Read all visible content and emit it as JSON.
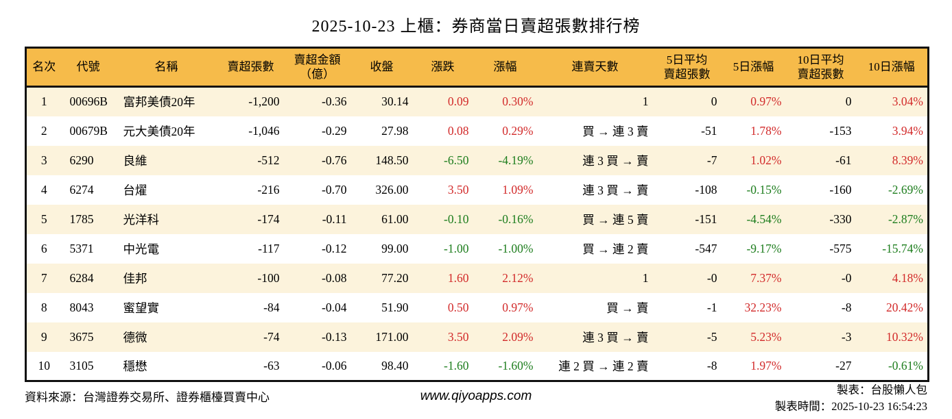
{
  "title": "2025-10-23 上櫃：券商當日賣超張數排行榜",
  "colors": {
    "up_red": "#d22a2a",
    "down_green": "#1d7d1d",
    "header_bg": "#f6bb4a",
    "row_alt_bg": "#fcf3dc",
    "border": "#111111"
  },
  "table": {
    "headers": [
      {
        "id": "rank",
        "label": "名次"
      },
      {
        "id": "code",
        "label": "代號"
      },
      {
        "id": "name",
        "label": "名稱"
      },
      {
        "id": "sell-volume",
        "label": "賣超張數"
      },
      {
        "id": "sell-amount",
        "label": "賣超金額\n（億）"
      },
      {
        "id": "close",
        "label": "收盤"
      },
      {
        "id": "change",
        "label": "漲跌"
      },
      {
        "id": "change-pct",
        "label": "漲幅"
      },
      {
        "id": "sell-streak",
        "label": "連賣天數"
      },
      {
        "id": "avg5-sell",
        "label": "5日平均\n賣超張數"
      },
      {
        "id": "pct5",
        "label": "5日漲幅"
      },
      {
        "id": "avg10-sell",
        "label": "10日平均\n賣超張數"
      },
      {
        "id": "pct10",
        "label": "10日漲幅"
      }
    ],
    "rows": [
      [
        {
          "t": "1"
        },
        {
          "t": "00696B"
        },
        {
          "t": "富邦美債20年"
        },
        {
          "t": "-1,200"
        },
        {
          "t": "-0.36"
        },
        {
          "t": "30.14"
        },
        {
          "t": "0.09",
          "c": "red"
        },
        {
          "t": "0.30%",
          "c": "red"
        },
        {
          "t": "1"
        },
        {
          "t": "0"
        },
        {
          "t": "0.97%",
          "c": "red"
        },
        {
          "t": "0"
        },
        {
          "t": "3.04%",
          "c": "red"
        }
      ],
      [
        {
          "t": "2"
        },
        {
          "t": "00679B"
        },
        {
          "t": "元大美債20年"
        },
        {
          "t": "-1,046"
        },
        {
          "t": "-0.29"
        },
        {
          "t": "27.98"
        },
        {
          "t": "0.08",
          "c": "red"
        },
        {
          "t": "0.29%",
          "c": "red"
        },
        {
          "t": "買 → 連 3 賣"
        },
        {
          "t": "-51"
        },
        {
          "t": "1.78%",
          "c": "red"
        },
        {
          "t": "-153"
        },
        {
          "t": "3.94%",
          "c": "red"
        }
      ],
      [
        {
          "t": "3"
        },
        {
          "t": "6290"
        },
        {
          "t": "良維"
        },
        {
          "t": "-512"
        },
        {
          "t": "-0.76"
        },
        {
          "t": "148.50"
        },
        {
          "t": "-6.50",
          "c": "green"
        },
        {
          "t": "-4.19%",
          "c": "green"
        },
        {
          "t": "連 3 買 → 賣"
        },
        {
          "t": "-7"
        },
        {
          "t": "1.02%",
          "c": "red"
        },
        {
          "t": "-61"
        },
        {
          "t": "8.39%",
          "c": "red"
        }
      ],
      [
        {
          "t": "4"
        },
        {
          "t": "6274"
        },
        {
          "t": "台燿"
        },
        {
          "t": "-216"
        },
        {
          "t": "-0.70"
        },
        {
          "t": "326.00"
        },
        {
          "t": "3.50",
          "c": "red"
        },
        {
          "t": "1.09%",
          "c": "red"
        },
        {
          "t": "連 3 買 → 賣"
        },
        {
          "t": "-108"
        },
        {
          "t": "-0.15%",
          "c": "green"
        },
        {
          "t": "-160"
        },
        {
          "t": "-2.69%",
          "c": "green"
        }
      ],
      [
        {
          "t": "5"
        },
        {
          "t": "1785"
        },
        {
          "t": "光洋科"
        },
        {
          "t": "-174"
        },
        {
          "t": "-0.11"
        },
        {
          "t": "61.00"
        },
        {
          "t": "-0.10",
          "c": "green"
        },
        {
          "t": "-0.16%",
          "c": "green"
        },
        {
          "t": "買 → 連 5 賣"
        },
        {
          "t": "-151"
        },
        {
          "t": "-4.54%",
          "c": "green"
        },
        {
          "t": "-330"
        },
        {
          "t": "-2.87%",
          "c": "green"
        }
      ],
      [
        {
          "t": "6"
        },
        {
          "t": "5371"
        },
        {
          "t": "中光電"
        },
        {
          "t": "-117"
        },
        {
          "t": "-0.12"
        },
        {
          "t": "99.00"
        },
        {
          "t": "-1.00",
          "c": "green"
        },
        {
          "t": "-1.00%",
          "c": "green"
        },
        {
          "t": "買 → 連 2 賣"
        },
        {
          "t": "-547"
        },
        {
          "t": "-9.17%",
          "c": "green"
        },
        {
          "t": "-575"
        },
        {
          "t": "-15.74%",
          "c": "green"
        }
      ],
      [
        {
          "t": "7"
        },
        {
          "t": "6284"
        },
        {
          "t": "佳邦"
        },
        {
          "t": "-100"
        },
        {
          "t": "-0.08"
        },
        {
          "t": "77.20"
        },
        {
          "t": "1.60",
          "c": "red"
        },
        {
          "t": "2.12%",
          "c": "red"
        },
        {
          "t": "1"
        },
        {
          "t": "-0"
        },
        {
          "t": "7.37%",
          "c": "red"
        },
        {
          "t": "-0"
        },
        {
          "t": "4.18%",
          "c": "red"
        }
      ],
      [
        {
          "t": "8"
        },
        {
          "t": "8043"
        },
        {
          "t": "蜜望實"
        },
        {
          "t": "-84"
        },
        {
          "t": "-0.04"
        },
        {
          "t": "51.90"
        },
        {
          "t": "0.50",
          "c": "red"
        },
        {
          "t": "0.97%",
          "c": "red"
        },
        {
          "t": "買 → 賣"
        },
        {
          "t": "-1"
        },
        {
          "t": "32.23%",
          "c": "red"
        },
        {
          "t": "-8"
        },
        {
          "t": "20.42%",
          "c": "red"
        }
      ],
      [
        {
          "t": "9"
        },
        {
          "t": "3675"
        },
        {
          "t": "德微"
        },
        {
          "t": "-74"
        },
        {
          "t": "-0.13"
        },
        {
          "t": "171.00"
        },
        {
          "t": "3.50",
          "c": "red"
        },
        {
          "t": "2.09%",
          "c": "red"
        },
        {
          "t": "連 3 買 → 賣"
        },
        {
          "t": "-5"
        },
        {
          "t": "5.23%",
          "c": "red"
        },
        {
          "t": "-3"
        },
        {
          "t": "10.32%",
          "c": "red"
        }
      ],
      [
        {
          "t": "10"
        },
        {
          "t": "3105"
        },
        {
          "t": "穩懋"
        },
        {
          "t": "-63"
        },
        {
          "t": "-0.06"
        },
        {
          "t": "98.40"
        },
        {
          "t": "-1.60",
          "c": "green"
        },
        {
          "t": "-1.60%",
          "c": "green"
        },
        {
          "t": "連 2 買 → 連 2 賣"
        },
        {
          "t": "-8"
        },
        {
          "t": "1.97%",
          "c": "red"
        },
        {
          "t": "-27"
        },
        {
          "t": "-0.61%",
          "c": "green"
        }
      ]
    ]
  },
  "footer": {
    "source": "資料來源：台灣證券交易所、證券櫃檯買賣中心",
    "website": "www.qiyoapps.com",
    "maker": "製表：台股懶人包",
    "made_at": "製表時間：2025-10-23 16:54:23"
  }
}
